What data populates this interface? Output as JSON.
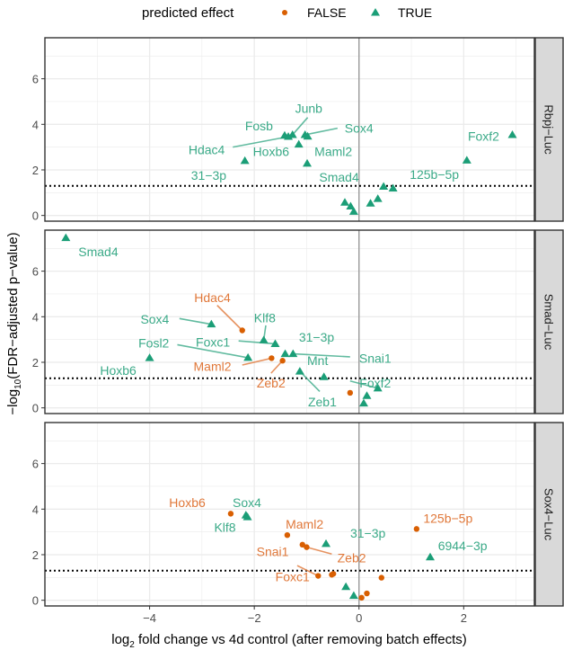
{
  "chart_data": {
    "type": "scatter",
    "legend": {
      "title": "predicted effect",
      "entries": [
        {
          "label": "FALSE",
          "color": "#D95F02",
          "shape": "circle"
        },
        {
          "label": "TRUE",
          "color": "#1B9E77",
          "shape": "triangle"
        }
      ],
      "placement": "top"
    },
    "xlabel": {
      "prefix": "log",
      "sub": "2",
      "suffix": " fold change vs 4d control (after removing batch effects)"
    },
    "ylabel": {
      "prefix": "−log",
      "sub": "10",
      "suffix": "(FDR−adjusted p−value)"
    },
    "xlim": [
      -6.0,
      3.35
    ],
    "ylim": [
      -0.25,
      7.8
    ],
    "xticks": [
      {
        "v": -4,
        "label": "−4"
      },
      {
        "v": -2,
        "label": "−2"
      },
      {
        "v": 0,
        "label": "0"
      },
      {
        "v": 2,
        "label": "2"
      }
    ],
    "yticks": [
      {
        "v": 0,
        "label": "0"
      },
      {
        "v": 2,
        "label": "2"
      },
      {
        "v": 4,
        "label": "4"
      },
      {
        "v": 6,
        "label": "6"
      }
    ],
    "threshold_y": 1.3,
    "grid": true,
    "panels": [
      {
        "strip": "Rbpj−Luc",
        "points": [
          {
            "label": "Fosb",
            "x": -1.42,
            "y": 3.51,
            "effect": "TRUE"
          },
          {
            "label": "Junb",
            "x": -1.27,
            "y": 3.54,
            "effect": "TRUE"
          },
          {
            "label": "Sox4",
            "x": -1.03,
            "y": 3.54,
            "effect": "TRUE"
          },
          {
            "label": "Hdac4",
            "x": -1.35,
            "y": 3.46,
            "effect": "TRUE"
          },
          {
            "label": "Hoxb6",
            "x": -1.15,
            "y": 3.12,
            "effect": "TRUE"
          },
          {
            "label": "Maml2",
            "x": -0.99,
            "y": 2.28,
            "effect": "TRUE"
          },
          {
            "label": "31−3p",
            "x": -2.18,
            "y": 2.4,
            "effect": "TRUE"
          },
          {
            "label": "125b−5p",
            "x": 2.06,
            "y": 2.42,
            "effect": "TRUE"
          },
          {
            "label": "Foxf2",
            "x": 2.93,
            "y": 3.54,
            "effect": "TRUE"
          },
          {
            "label": "Smad4",
            "x": -0.27,
            "y": 0.57,
            "effect": "TRUE"
          },
          {
            "label": "",
            "x": 0.47,
            "y": 1.27,
            "effect": "TRUE"
          },
          {
            "label": "",
            "x": 0.65,
            "y": 1.19,
            "effect": "TRUE"
          },
          {
            "label": "",
            "x": -0.16,
            "y": 0.4,
            "effect": "TRUE"
          },
          {
            "label": "",
            "x": -0.1,
            "y": 0.17,
            "effect": "TRUE"
          },
          {
            "label": "",
            "x": 0.22,
            "y": 0.53,
            "effect": "TRUE"
          },
          {
            "label": "",
            "x": 0.36,
            "y": 0.73,
            "effect": "TRUE"
          },
          {
            "label": "",
            "x": -0.98,
            "y": 3.47,
            "effect": "TRUE"
          }
        ]
      },
      {
        "strip": "Smad−Luc",
        "points": [
          {
            "label": "Smad4",
            "x": -5.6,
            "y": 7.46,
            "effect": "TRUE"
          },
          {
            "label": "Sox4",
            "x": -2.82,
            "y": 3.67,
            "effect": "TRUE"
          },
          {
            "label": "Hoxb6",
            "x": -4.0,
            "y": 2.19,
            "effect": "TRUE"
          },
          {
            "label": "Hdac4",
            "x": -2.23,
            "y": 3.4,
            "effect": "FALSE"
          },
          {
            "label": "Klf8",
            "x": -1.82,
            "y": 2.97,
            "effect": "TRUE"
          },
          {
            "label": "Foxc1",
            "x": -1.6,
            "y": 2.81,
            "effect": "TRUE"
          },
          {
            "label": "Fosl2",
            "x": -2.12,
            "y": 2.2,
            "effect": "TRUE"
          },
          {
            "label": "Maml2",
            "x": -1.67,
            "y": 2.18,
            "effect": "FALSE"
          },
          {
            "label": "Zeb2",
            "x": -1.46,
            "y": 2.07,
            "effect": "FALSE"
          },
          {
            "label": "31−3p",
            "x": -1.41,
            "y": 2.37,
            "effect": "TRUE"
          },
          {
            "label": "Snai1",
            "x": -1.26,
            "y": 2.37,
            "effect": "TRUE"
          },
          {
            "label": "Zeb1",
            "x": -1.13,
            "y": 1.6,
            "effect": "TRUE"
          },
          {
            "label": "Mnt",
            "x": -0.67,
            "y": 1.36,
            "effect": "TRUE"
          },
          {
            "label": "",
            "x": -0.17,
            "y": 0.66,
            "effect": "FALSE"
          },
          {
            "label": "Foxf2",
            "x": 0.36,
            "y": 0.86,
            "effect": "TRUE"
          },
          {
            "label": "",
            "x": 0.15,
            "y": 0.53,
            "effect": "TRUE"
          },
          {
            "label": "",
            "x": 0.09,
            "y": 0.2,
            "effect": "TRUE"
          }
        ]
      },
      {
        "strip": "Sox4−Luc",
        "points": [
          {
            "label": "Hoxb6",
            "x": -2.45,
            "y": 3.8,
            "effect": "FALSE"
          },
          {
            "label": "Sox4",
            "x": -2.16,
            "y": 3.73,
            "effect": "TRUE"
          },
          {
            "label": "Klf8",
            "x": -2.13,
            "y": 3.65,
            "effect": "TRUE"
          },
          {
            "label": "Maml2",
            "x": -1.37,
            "y": 2.86,
            "effect": "FALSE"
          },
          {
            "label": "Snai1",
            "x": -1.08,
            "y": 2.44,
            "effect": "FALSE"
          },
          {
            "label": "Zeb2",
            "x": -1.0,
            "y": 2.33,
            "effect": "FALSE"
          },
          {
            "label": "31−3p",
            "x": -0.63,
            "y": 2.48,
            "effect": "TRUE"
          },
          {
            "label": "125b−5p",
            "x": 1.1,
            "y": 3.13,
            "effect": "FALSE"
          },
          {
            "label": "6944−3p",
            "x": 1.36,
            "y": 1.89,
            "effect": "TRUE"
          },
          {
            "label": "Foxc1",
            "x": -0.78,
            "y": 1.07,
            "effect": "FALSE"
          },
          {
            "label": "",
            "x": -0.52,
            "y": 1.12,
            "effect": "FALSE"
          },
          {
            "label": "",
            "x": -0.49,
            "y": 1.16,
            "effect": "FALSE"
          },
          {
            "label": "",
            "x": 0.43,
            "y": 0.99,
            "effect": "FALSE"
          },
          {
            "label": "",
            "x": -0.25,
            "y": 0.59,
            "effect": "TRUE"
          },
          {
            "label": "",
            "x": -0.1,
            "y": 0.2,
            "effect": "TRUE"
          },
          {
            "label": "",
            "x": 0.05,
            "y": 0.11,
            "effect": "FALSE"
          },
          {
            "label": "",
            "x": 0.15,
            "y": 0.3,
            "effect": "FALSE"
          }
        ]
      }
    ]
  }
}
